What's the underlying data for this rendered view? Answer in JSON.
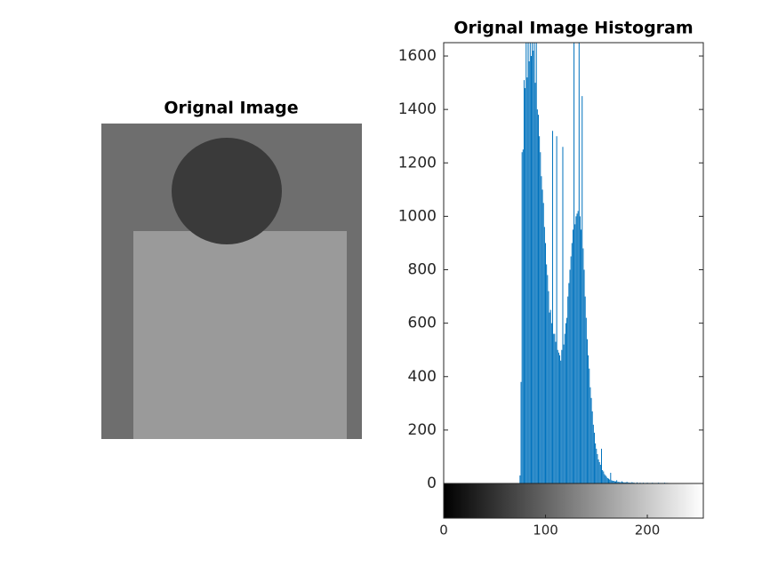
{
  "left_panel": {
    "title": "Orignal Image"
  },
  "chart_data": {
    "type": "stem",
    "title": "Orignal Image Histogram",
    "color": "#0072BD",
    "xlim": [
      0,
      255
    ],
    "xticks": [
      0,
      100,
      200
    ],
    "ylim": [
      0,
      1650
    ],
    "yticks": [
      0,
      200,
      400,
      600,
      800,
      1000,
      1200,
      1400,
      1600
    ],
    "x": [
      0,
      1,
      2,
      3,
      4,
      5,
      6,
      7,
      8,
      9,
      10,
      11,
      12,
      13,
      14,
      15,
      16,
      17,
      18,
      19,
      20,
      21,
      22,
      23,
      24,
      25,
      26,
      27,
      28,
      29,
      30,
      31,
      32,
      33,
      34,
      35,
      36,
      37,
      38,
      39,
      40,
      41,
      42,
      43,
      44,
      45,
      46,
      47,
      48,
      49,
      50,
      51,
      52,
      53,
      54,
      55,
      56,
      57,
      58,
      59,
      60,
      61,
      62,
      63,
      64,
      65,
      66,
      67,
      68,
      69,
      70,
      71,
      72,
      73,
      74,
      75,
      76,
      77,
      78,
      79,
      80,
      81,
      82,
      83,
      84,
      85,
      86,
      87,
      88,
      89,
      90,
      91,
      92,
      93,
      94,
      95,
      96,
      97,
      98,
      99,
      100,
      101,
      102,
      103,
      104,
      105,
      106,
      107,
      108,
      109,
      110,
      111,
      112,
      113,
      114,
      115,
      116,
      117,
      118,
      119,
      120,
      121,
      122,
      123,
      124,
      125,
      126,
      127,
      128,
      129,
      130,
      131,
      132,
      133,
      134,
      135,
      136,
      137,
      138,
      139,
      140,
      141,
      142,
      143,
      144,
      145,
      146,
      147,
      148,
      149,
      150,
      151,
      152,
      153,
      154,
      155,
      156,
      157,
      158,
      159,
      160,
      161,
      162,
      163,
      164,
      165,
      166,
      167,
      168,
      169,
      170,
      171,
      172,
      173,
      174,
      175,
      176,
      177,
      178,
      179,
      180,
      181,
      182,
      183,
      184,
      185,
      186,
      187,
      188,
      189,
      190,
      191,
      192,
      193,
      194,
      195,
      196,
      197,
      198,
      199,
      200,
      201,
      202,
      203,
      204,
      205,
      206,
      207,
      208,
      209,
      210,
      211,
      212,
      213,
      214,
      215,
      216,
      217,
      218,
      219,
      220,
      221,
      222,
      223,
      224,
      225,
      226,
      227,
      228,
      229,
      230,
      231,
      232,
      233,
      234,
      235,
      236,
      237,
      238,
      239,
      240,
      241,
      242,
      243,
      244,
      245,
      246,
      247,
      248,
      249,
      250,
      251,
      252,
      253,
      254,
      255
    ],
    "values": [
      0,
      0,
      0,
      0,
      0,
      0,
      0,
      0,
      0,
      0,
      0,
      0,
      0,
      0,
      0,
      0,
      0,
      0,
      0,
      0,
      0,
      0,
      0,
      0,
      0,
      0,
      0,
      0,
      0,
      0,
      0,
      0,
      0,
      0,
      0,
      0,
      0,
      0,
      0,
      0,
      0,
      0,
      0,
      0,
      0,
      0,
      0,
      0,
      0,
      0,
      0,
      0,
      0,
      0,
      0,
      0,
      0,
      0,
      0,
      0,
      0,
      0,
      0,
      0,
      0,
      0,
      0,
      0,
      0,
      0,
      0,
      0,
      0,
      0,
      0,
      30,
      380,
      1240,
      1250,
      1510,
      1480,
      1650,
      1520,
      1650,
      1580,
      1650,
      1600,
      1650,
      1620,
      1650,
      1500,
      1650,
      1400,
      1380,
      1300,
      1240,
      1150,
      1100,
      1050,
      960,
      900,
      820,
      780,
      720,
      640,
      650,
      600,
      1320,
      560,
      560,
      530,
      1300,
      500,
      490,
      480,
      460,
      500,
      1260,
      520,
      560,
      600,
      620,
      700,
      750,
      800,
      850,
      900,
      950,
      1650,
      970,
      1000,
      1010,
      1020,
      1650,
      1000,
      950,
      1450,
      880,
      800,
      700,
      620,
      540,
      480,
      430,
      360,
      320,
      270,
      220,
      190,
      150,
      130,
      110,
      90,
      80,
      70,
      130,
      50,
      45,
      35,
      30,
      25,
      20,
      18,
      15,
      40,
      12,
      10,
      10,
      8,
      8,
      12,
      6,
      6,
      5,
      5,
      8,
      5,
      4,
      4,
      4,
      6,
      4,
      3,
      3,
      3,
      5,
      3,
      3,
      2,
      2,
      4,
      2,
      2,
      3,
      2,
      2,
      3,
      2,
      2,
      2,
      3,
      2,
      2,
      2,
      2,
      3,
      2,
      2,
      2,
      2,
      2,
      3,
      2,
      2,
      2,
      2,
      2,
      3,
      2,
      2,
      2,
      0,
      0,
      0,
      0,
      0,
      0,
      0,
      0,
      0,
      0,
      0,
      0,
      0,
      0,
      0,
      0,
      0,
      0,
      0,
      0,
      0,
      0,
      0,
      0,
      0,
      0,
      0,
      0,
      0,
      0,
      0,
      0,
      0,
      0,
      0
    ]
  }
}
